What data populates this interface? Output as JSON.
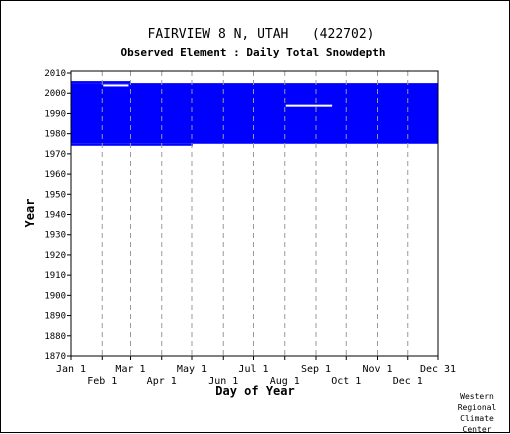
{
  "chart_data": {
    "type": "heatmap",
    "title": "FAIRVIEW 8 N, UTAH   (422702)",
    "subtitle": "Observed Element : Daily Total Snowdepth",
    "xlabel": "Day of Year",
    "ylabel": "Year",
    "xlim": [
      1,
      365
    ],
    "ylim": [
      1870,
      2011
    ],
    "y_ticks": [
      1870,
      1880,
      1890,
      1900,
      1910,
      1920,
      1930,
      1940,
      1950,
      1960,
      1970,
      1980,
      1990,
      2000,
      2010
    ],
    "x_ticks_upper": [
      {
        "label": "Jan 1",
        "day": 1
      },
      {
        "label": "Mar 1",
        "day": 60
      },
      {
        "label": "May 1",
        "day": 121
      },
      {
        "label": "Jul 1",
        "day": 182
      },
      {
        "label": "Sep 1",
        "day": 244
      },
      {
        "label": "Nov 1",
        "day": 305
      },
      {
        "label": "Dec 31",
        "day": 365
      }
    ],
    "x_ticks_lower": [
      {
        "label": "Feb 1",
        "day": 32
      },
      {
        "label": "Apr 1",
        "day": 91
      },
      {
        "label": "Jun 1",
        "day": 152
      },
      {
        "label": "Aug 1",
        "day": 213
      },
      {
        "label": "Oct 1",
        "day": 274
      },
      {
        "label": "Dec 1",
        "day": 335
      }
    ],
    "grid_days": [
      32,
      60,
      91,
      121,
      152,
      182,
      213,
      244,
      274,
      305,
      335
    ],
    "series": [
      {
        "color": "#0000ff",
        "blocks": [
          {
            "day_start": 1,
            "day_end": 365,
            "year_start": 1975,
            "year_end": 2005
          },
          {
            "day_start": 1,
            "day_end": 60,
            "year_start": 2005,
            "year_end": 2006
          },
          {
            "day_start": 1,
            "day_end": 122,
            "year_start": 1974,
            "year_end": 1975
          }
        ],
        "gaps": [
          {
            "day_start": 214,
            "day_end": 260,
            "year": 1994
          },
          {
            "day_start": 33,
            "day_end": 58,
            "year": 2004
          }
        ]
      }
    ],
    "colors": {
      "data": "#0000ff",
      "background": "#ffffff",
      "grid": "#999999"
    },
    "grid": true
  },
  "credit": [
    "Western",
    "Regional",
    "Climate",
    "Center"
  ]
}
